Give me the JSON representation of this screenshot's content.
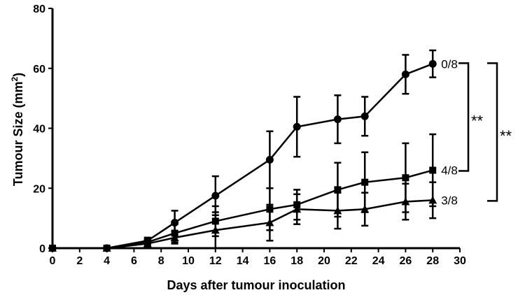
{
  "chart_data": {
    "type": "line",
    "xlabel": "Days after tumour inoculation",
    "ylabel_prefix": "Tumour Size (mm",
    "ylabel_sup": "2",
    "ylabel_suffix": ")",
    "xlim": [
      0,
      30
    ],
    "ylim": [
      0,
      80
    ],
    "xticks": [
      0,
      2,
      4,
      6,
      8,
      10,
      12,
      14,
      16,
      18,
      20,
      22,
      24,
      26,
      28,
      30
    ],
    "yticks": [
      0,
      20,
      40,
      60,
      80
    ],
    "grid": false,
    "series": [
      {
        "marker": "circle",
        "end_label": "0/8",
        "x": [
          0,
          4,
          7,
          9,
          12,
          16,
          18,
          21,
          23,
          26,
          28
        ],
        "y": [
          0,
          0,
          2.5,
          8.5,
          17.5,
          29.5,
          40.5,
          43,
          44,
          58,
          61.5
        ],
        "err": [
          0,
          0,
          1,
          4,
          6.5,
          9.5,
          10,
          8,
          6.5,
          6.5,
          4.5
        ]
      },
      {
        "marker": "square",
        "end_label": "4/8",
        "x": [
          0,
          4,
          7,
          9,
          12,
          16,
          18,
          21,
          23,
          26,
          28
        ],
        "y": [
          0,
          0,
          2,
          5,
          9,
          13,
          14.5,
          19.5,
          22,
          23.5,
          26
        ],
        "err": [
          0,
          0,
          1.5,
          3,
          5,
          7,
          5,
          9,
          10,
          11.5,
          12
        ]
      },
      {
        "marker": "triangle",
        "end_label": "3/8",
        "x": [
          0,
          4,
          7,
          9,
          12,
          16,
          18,
          21,
          23,
          26,
          28
        ],
        "y": [
          0,
          0,
          1.5,
          3.5,
          6,
          8.5,
          13,
          12.5,
          13,
          15.5,
          16
        ],
        "err": [
          0,
          0,
          1,
          2,
          6,
          6,
          5,
          6,
          5.5,
          6,
          6
        ]
      }
    ],
    "annotations": [
      {
        "label": "**",
        "from_series": 0,
        "to_series": 1
      },
      {
        "label": "**",
        "from_series": 0,
        "to_series": 2
      }
    ]
  }
}
